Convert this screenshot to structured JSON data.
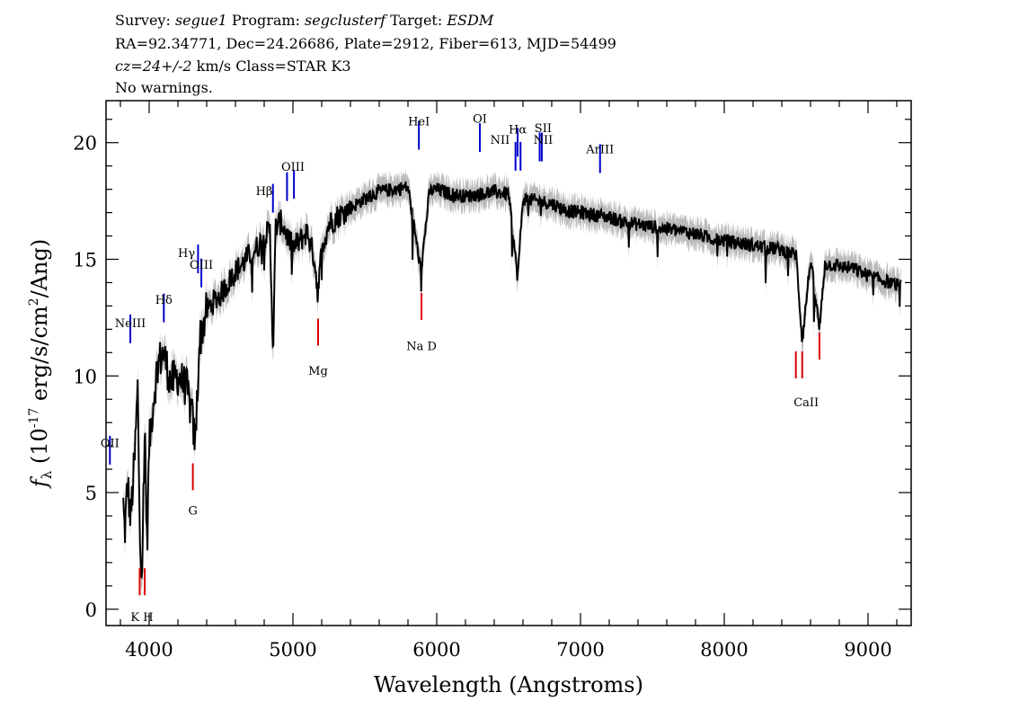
{
  "header": {
    "line1": [
      {
        "text": "Survey: ",
        "italic": false
      },
      {
        "text": "segue1",
        "italic": true
      },
      {
        "text": " Program: ",
        "italic": false
      },
      {
        "text": "segclusterf",
        "italic": true
      },
      {
        "text": " Target: ",
        "italic": false
      },
      {
        "text": "ESDM",
        "italic": true
      }
    ],
    "line2": "RA=92.34771, Dec=24.26686, Plate=2912, Fiber=613, MJD=54499",
    "line3": [
      {
        "text": "cz=24+/-2",
        "italic": true
      },
      {
        "text": " km/s Class=STAR K3",
        "italic": false
      }
    ],
    "line4": "No warnings."
  },
  "chart_data": {
    "type": "line",
    "xlabel": "Wavelength (Angstroms)",
    "ylabel_parts": [
      "f",
      "λ",
      " (10",
      "-17",
      " erg/s/cm",
      "2",
      "/Ang)"
    ],
    "xlim": [
      3700,
      9300
    ],
    "ylim": [
      -0.7,
      21.8
    ],
    "x_ticks": [
      4000,
      5000,
      6000,
      7000,
      8000,
      9000
    ],
    "y_ticks": [
      0,
      5,
      10,
      15,
      20
    ],
    "x_tick_labels": [
      "4000",
      "5000",
      "6000",
      "7000",
      "8000",
      "9000"
    ],
    "y_tick_labels": [
      "0",
      "5",
      "10",
      "15",
      "20"
    ],
    "spectrum_colors": {
      "flux": "#000000",
      "error": "#bbbbbb"
    },
    "spectrum_anchor_points": {
      "x": [
        3820,
        3830,
        3850,
        3870,
        3900,
        3920,
        3935,
        3950,
        3970,
        3985,
        4000,
        4030,
        4060,
        4100,
        4150,
        4200,
        4260,
        4300,
        4320,
        4350,
        4400,
        4450,
        4500,
        4550,
        4600,
        4650,
        4700,
        4750,
        4800,
        4840,
        4862,
        4880,
        4920,
        4960,
        5000,
        5050,
        5100,
        5150,
        5175,
        5200,
        5250,
        5300,
        5400,
        5500,
        5600,
        5700,
        5800,
        5890,
        5950,
        6000,
        6100,
        6200,
        6300,
        6400,
        6500,
        6563,
        6600,
        6700,
        6800,
        6900,
        7000,
        7100,
        7200,
        7300,
        7400,
        7500,
        7600,
        7700,
        7800,
        7900,
        8000,
        8100,
        8200,
        8300,
        8400,
        8500,
        8542,
        8600,
        8662,
        8700,
        8800,
        8900,
        9000,
        9100,
        9200,
        9230
      ],
      "y": [
        4.5,
        3.2,
        5.5,
        3.8,
        6.5,
        9.5,
        3.5,
        1.5,
        8.0,
        2.5,
        7.0,
        9.0,
        10.5,
        11.0,
        9.7,
        10.0,
        9.5,
        8.2,
        7.0,
        11.5,
        12.8,
        13.2,
        13.5,
        14.0,
        14.5,
        14.8,
        15.2,
        15.5,
        16.0,
        16.2,
        11.0,
        16.4,
        16.6,
        16.0,
        15.5,
        15.8,
        16.2,
        15.0,
        13.5,
        15.5,
        16.5,
        16.8,
        17.2,
        17.6,
        17.9,
        18.0,
        18.1,
        14.5,
        17.9,
        18.0,
        17.8,
        17.7,
        17.8,
        17.9,
        17.8,
        14.2,
        17.6,
        17.5,
        17.4,
        17.1,
        17.0,
        16.9,
        16.8,
        16.6,
        16.5,
        16.4,
        16.3,
        16.2,
        16.1,
        15.9,
        15.8,
        15.7,
        15.6,
        15.5,
        15.4,
        15.2,
        11.5,
        15.0,
        12.0,
        14.8,
        14.7,
        14.6,
        14.3,
        14.1,
        13.9,
        13.9
      ]
    },
    "emission_lines": [
      {
        "label": "OII",
        "x": 3727,
        "y": 6.2
      },
      {
        "label": "NeIII",
        "x": 3869,
        "y": 11.4
      },
      {
        "label": "Hδ",
        "x": 4102,
        "y": 12.3
      },
      {
        "label": "Hγ",
        "x": 4340,
        "y": 14.4
      },
      {
        "label": "OIII",
        "x": 4363,
        "y": 13.8
      },
      {
        "label": "Hβ",
        "x": 4861,
        "y": 17.0
      },
      {
        "label": "OIII",
        "x": 4959,
        "y": 17.5
      },
      {
        "label": "OIII",
        "x": 5007,
        "y": 17.6
      },
      {
        "label": "HeI",
        "x": 5876,
        "y": 19.7
      },
      {
        "label": "OI",
        "x": 6300,
        "y": 19.6
      },
      {
        "label": "NII",
        "x": 6548,
        "y": 18.8
      },
      {
        "label": "Hα",
        "x": 6563,
        "y": 19.4
      },
      {
        "label": "NII",
        "x": 6583,
        "y": 18.8
      },
      {
        "label": "SII",
        "x": 6716,
        "y": 19.2
      },
      {
        "label": "SII",
        "x": 6731,
        "y": 19.2
      },
      {
        "label": "ArIII",
        "x": 7136,
        "y": 18.7
      }
    ],
    "absorption_lines": [
      {
        "label": "K",
        "x": 3934,
        "y": 0.6
      },
      {
        "label": "H",
        "x": 3969,
        "y": 0.6
      },
      {
        "label": "G",
        "x": 4304,
        "y": 5.1
      },
      {
        "label": "Mg",
        "x": 5175,
        "y": 11.3
      },
      {
        "label": "Na",
        "x": 5894,
        "y": 12.4
      },
      {
        "label": "CaII",
        "x": 8498,
        "y": 9.9
      },
      {
        "label": "CaII",
        "x": 8542,
        "y": 9.9
      },
      {
        "label": "CaII",
        "x": 8662,
        "y": 10.7
      }
    ],
    "marker_labels": [
      {
        "text": "OII",
        "kind": "emission",
        "x": 3727,
        "y": 6.95
      },
      {
        "text": "NeIII",
        "kind": "emission",
        "x": 3869,
        "y": 12.1
      },
      {
        "text": "Hδ",
        "kind": "emission",
        "x": 4102,
        "y": 13.1
      },
      {
        "text": "Hγ",
        "kind": "emission",
        "x": 4260,
        "y": 15.1
      },
      {
        "text": "OIII",
        "kind": "emission",
        "x": 4363,
        "y": 14.6
      },
      {
        "text": "Hβ",
        "kind": "emission",
        "x": 4800,
        "y": 17.75
      },
      {
        "text": "OIII",
        "kind": "emission",
        "x": 5000,
        "y": 18.8
      },
      {
        "text": "HeI",
        "kind": "emission",
        "x": 5876,
        "y": 20.75
      },
      {
        "text": "OI",
        "kind": "emission",
        "x": 6300,
        "y": 20.85
      },
      {
        "text": "NII",
        "kind": "emission",
        "x": 6440,
        "y": 19.95
      },
      {
        "text": "Hα",
        "kind": "emission",
        "x": 6563,
        "y": 20.4
      },
      {
        "text": "SII",
        "kind": "emission",
        "x": 6740,
        "y": 20.45
      },
      {
        "text": "NII",
        "kind": "emission",
        "x": 6740,
        "y": 19.95
      },
      {
        "text": "ArIII",
        "kind": "emission",
        "x": 7136,
        "y": 19.55
      },
      {
        "text": "K H",
        "kind": "absorption",
        "x": 3950,
        "y": -0.5
      },
      {
        "text": "G",
        "kind": "absorption",
        "x": 4304,
        "y": 4.05
      },
      {
        "text": "Mg",
        "kind": "absorption",
        "x": 5175,
        "y": 10.05
      },
      {
        "text": "Na  D",
        "kind": "absorption",
        "x": 5894,
        "y": 11.1
      },
      {
        "text": "CaII",
        "kind": "absorption",
        "x": 8570,
        "y": 8.7
      }
    ]
  }
}
